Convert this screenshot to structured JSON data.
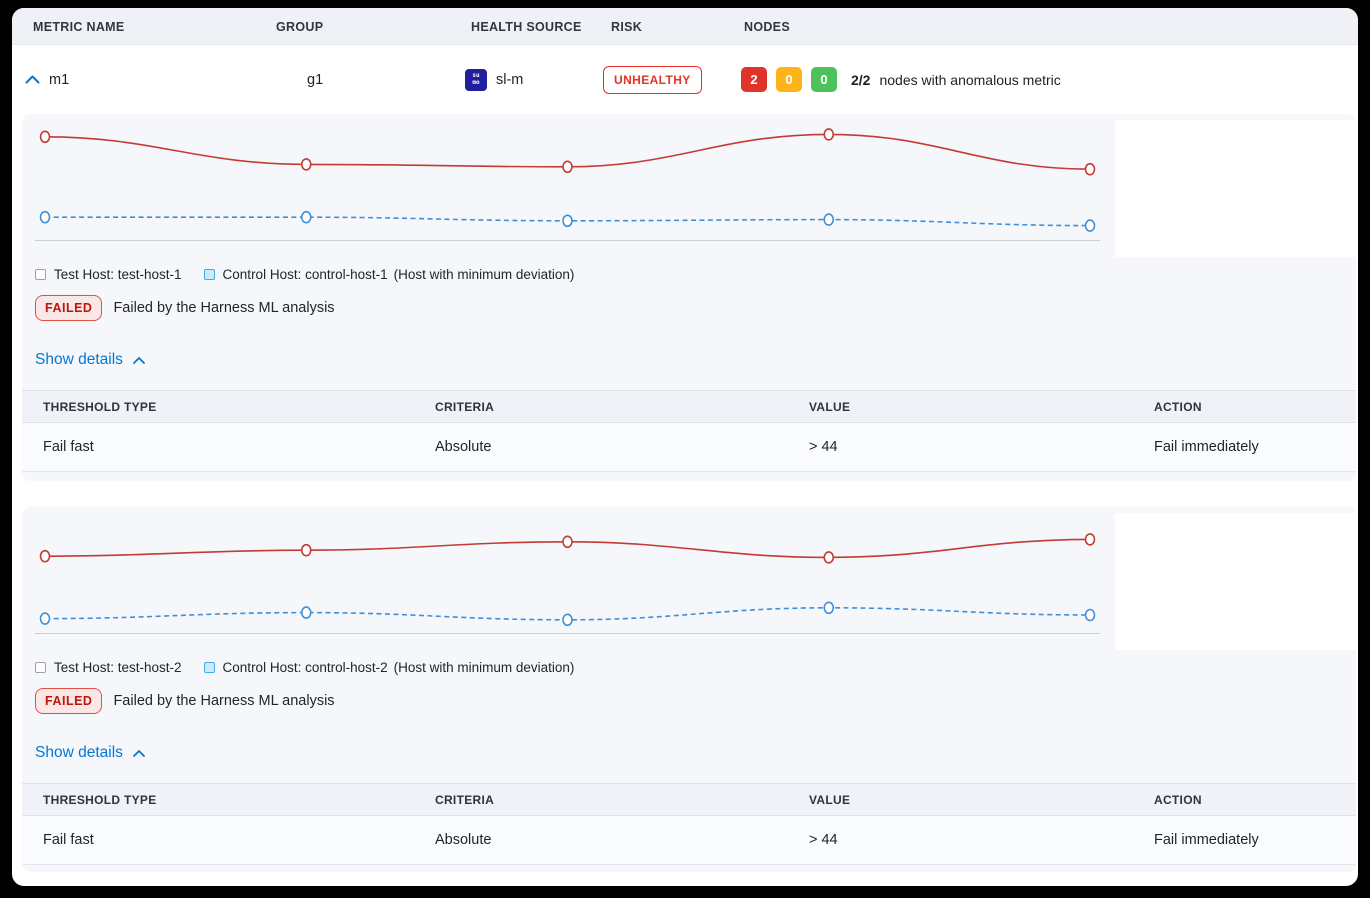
{
  "colors": {
    "test_line": "#c23b34",
    "control_line": "#3f8fd8",
    "risk_red": "#e43326",
    "node_red": "#e0342b",
    "node_amber": "#fcb519",
    "node_green": "#4dc25b",
    "link_blue": "#0278d5"
  },
  "columns": {
    "metric_name": "METRIC NAME",
    "group": "GROUP",
    "health_source": "HEALTH SOURCE",
    "risk": "RISK",
    "nodes": "NODES"
  },
  "metric_row": {
    "metric_name": "m1",
    "group": "g1",
    "health_source": {
      "name": "sl-m",
      "icon_line1": "su",
      "icon_line2": "mo"
    },
    "risk": "UNHEALTHY",
    "nodes": {
      "anomalous_count": "2",
      "warning_count": "0",
      "healthy_count": "0",
      "ratio": "2/2",
      "label": "nodes with anomalous metric"
    }
  },
  "sections": [
    {
      "legend": {
        "test_label": "Test Host: test-host-1",
        "control_label": "Control Host: control-host-1",
        "control_note": "(Host with minimum deviation)"
      },
      "status": {
        "badge": "FAILED",
        "message": "Failed by the Harness ML analysis"
      },
      "details_link": "Show details",
      "table": {
        "headers": [
          "THRESHOLD TYPE",
          "CRITERIA",
          "VALUE",
          "ACTION"
        ],
        "rows": [
          [
            "Fail fast",
            "Absolute",
            "> 44",
            "Fail immediately"
          ]
        ]
      },
      "chart": {
        "type": "line",
        "x": [
          1,
          2,
          3,
          4,
          5
        ],
        "series": [
          {
            "name": "test-host-1",
            "color": "#c23b34",
            "style": "solid",
            "values": [
              0.86,
              0.63,
              0.61,
              0.88,
              0.59
            ]
          },
          {
            "name": "control-host-1",
            "color": "#3f8fd8",
            "style": "dashed",
            "values": [
              0.19,
              0.19,
              0.16,
              0.17,
              0.12
            ]
          }
        ]
      }
    },
    {
      "legend": {
        "test_label": "Test Host: test-host-2",
        "control_label": "Control Host: control-host-2",
        "control_note": "(Host with minimum deviation)"
      },
      "status": {
        "badge": "FAILED",
        "message": "Failed by the Harness ML analysis"
      },
      "details_link": "Show details",
      "table": {
        "headers": [
          "THRESHOLD TYPE",
          "CRITERIA",
          "VALUE",
          "ACTION"
        ],
        "rows": [
          [
            "Fail fast",
            "Absolute",
            "> 44",
            "Fail immediately"
          ]
        ]
      },
      "chart": {
        "type": "line",
        "x": [
          1,
          2,
          3,
          4,
          5
        ],
        "series": [
          {
            "name": "test-host-2",
            "color": "#c23b34",
            "style": "solid",
            "values": [
              0.64,
              0.69,
              0.76,
              0.63,
              0.78
            ]
          },
          {
            "name": "control-host-2",
            "color": "#3f8fd8",
            "style": "dashed",
            "values": [
              0.12,
              0.17,
              0.11,
              0.21,
              0.15
            ]
          }
        ]
      }
    }
  ]
}
